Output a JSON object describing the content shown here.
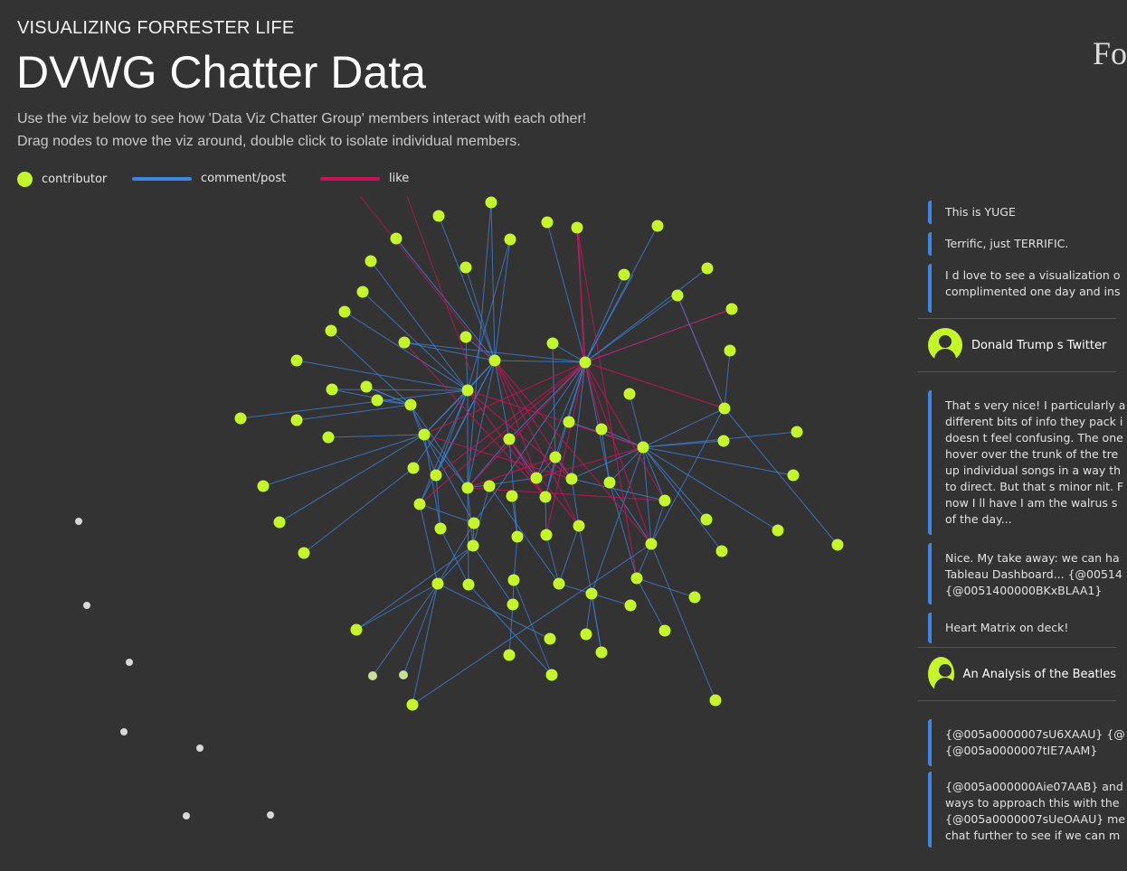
{
  "header": {
    "kicker": "VISUALIZING FORRESTER LIFE",
    "title": "DVWG Chatter Data",
    "desc_line1": "Use the viz below to see how 'Data Viz Chatter Group' members interact with each other!",
    "desc_line2": "Drag nodes to move the viz around, double click to isolate individual members.",
    "brand": "Fo"
  },
  "legend": {
    "contributor": "contributor",
    "comment_post": "comment/post",
    "like": "like"
  },
  "colors": {
    "background": "#333333",
    "contributor": "#c5f52b",
    "comment_post": "#3f86e4",
    "like": "#c8135a",
    "inactive_node": "#d8d8d8"
  },
  "feed": {
    "c1": "This is YUGE",
    "c2": "Terrific, just TERRIFIC.",
    "c3": [
      "I d love to see a visualization o",
      "complimented one day and ins"
    ],
    "post1_title": "Donald Trump s Twitter",
    "c4": [
      "That s very nice! I particularly a",
      "different bits of info they pack i",
      "doesn t feel confusing. The one",
      "hover over the trunk of the tre",
      "up individual songs in a way th",
      "to direct. But that s minor nit. F",
      "now I ll have I am the walrus s",
      "of the day..."
    ],
    "c5": [
      "Nice. My take away: we can ha",
      "Tableau Dashboard... {@00514",
      "{@0051400000BKxBLAA1}"
    ],
    "c6": "Heart Matrix on deck!",
    "post2_title": "An Analysis of the Beatles",
    "c7": [
      "{@005a0000007sU6XAAU} {@",
      "{@005a0000007tIE7AAM}"
    ],
    "c8": [
      "{@005a000000Aie07AAB} and",
      "ways to approach this with the",
      "{@005a0000007sUeOAAU} me",
      "chat further to see if we can m"
    ]
  }
}
